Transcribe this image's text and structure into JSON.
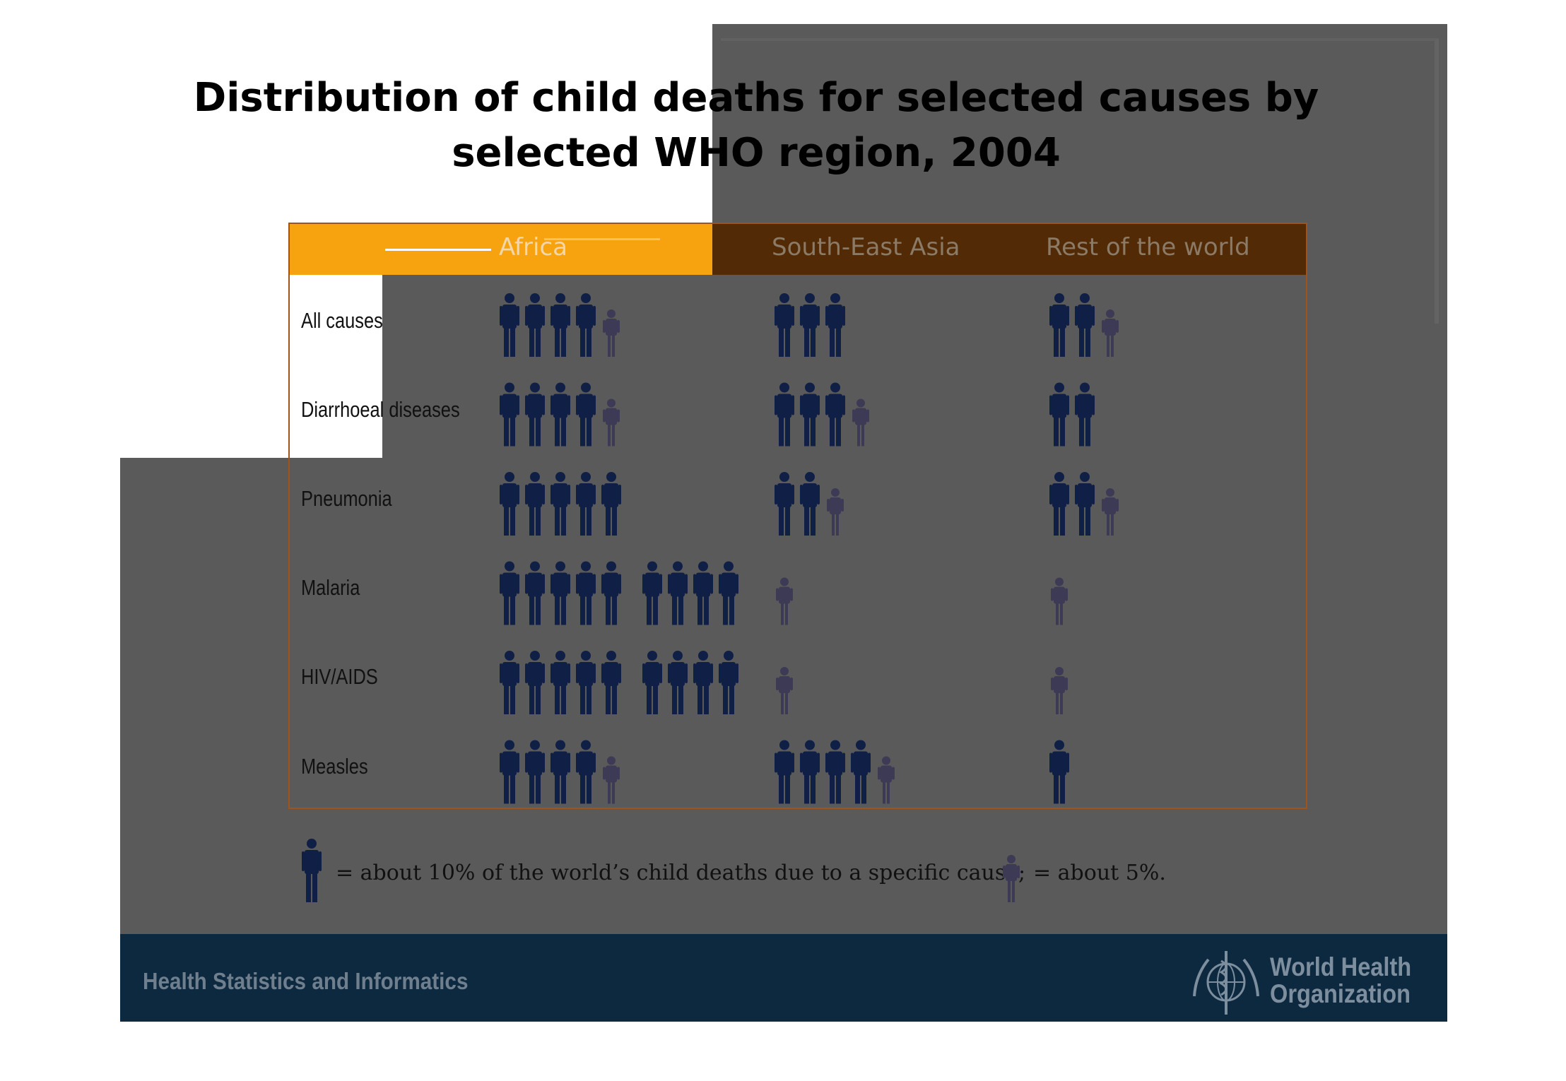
{
  "title_line1": "Distribution of child deaths for selected causes by",
  "title_line2": "selected WHO region, 2004",
  "colors": {
    "full_icon": "#0f1f45",
    "half_icon": "#3d3a55",
    "header_dark": "#522a06",
    "header_orange": "#f7a310",
    "footer": "#0d2940"
  },
  "chart_data": {
    "type": "table",
    "title": "Distribution of child deaths for selected causes by selected WHO region, 2004",
    "columns": [
      "Africa",
      "South-East Asia",
      "Rest of the world"
    ],
    "rows": [
      {
        "label": "All causes",
        "values": [
          45,
          30,
          25
        ]
      },
      {
        "label": "Diarrhoeal diseases",
        "values": [
          45,
          35,
          20
        ]
      },
      {
        "label": "Pneumonia",
        "values": [
          50,
          25,
          25
        ]
      },
      {
        "label": "Malaria",
        "values": [
          90,
          5,
          5
        ]
      },
      {
        "label": "HIV/AIDS",
        "values": [
          90,
          5,
          5
        ]
      },
      {
        "label": "Measles",
        "values": [
          45,
          45,
          10
        ]
      }
    ],
    "unit": "% of the world's child deaths due to a specific cause",
    "icon_full_value": 10,
    "icon_half_value": 5
  },
  "legend": {
    "full_text": "= about 10% of the world’s child deaths due to a specific cause;",
    "half_text": "= about 5%."
  },
  "footer": {
    "left_text": "Health Statistics and Informatics",
    "org_line1": "World Health",
    "org_line2": "Organization",
    "emblem_icon": "who-emblem-icon"
  }
}
